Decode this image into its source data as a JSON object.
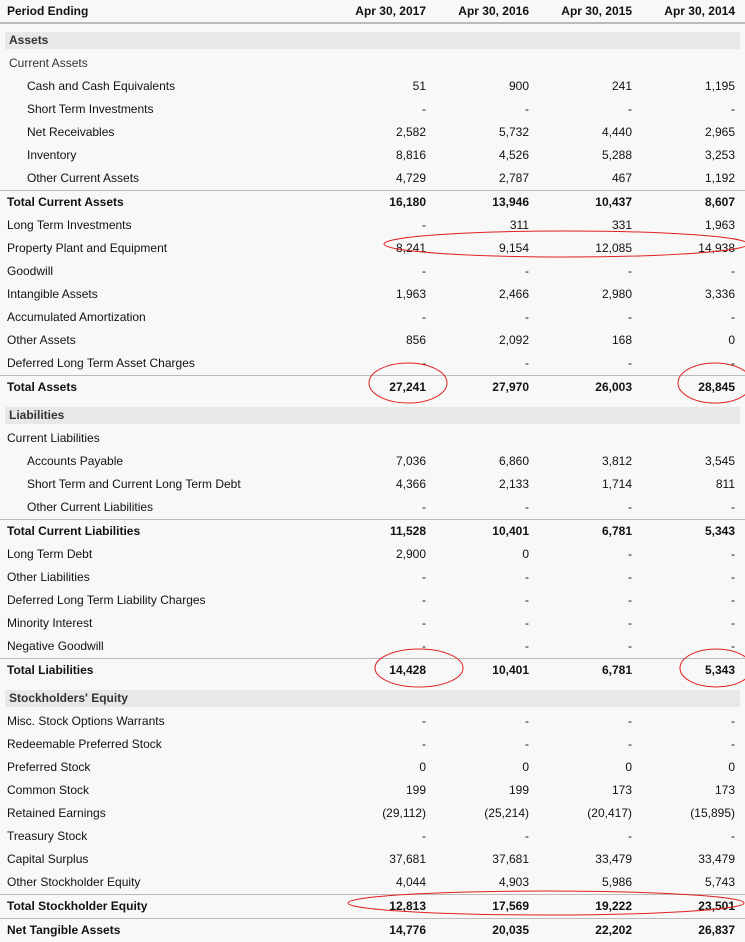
{
  "header": {
    "label": "Period Ending",
    "columns": [
      "Apr 30, 2017",
      "Apr 30, 2016",
      "Apr 30, 2015",
      "Apr 30, 2014"
    ]
  },
  "rows": [
    {
      "type": "section",
      "label": "Assets"
    },
    {
      "type": "sub",
      "label": "Current Assets"
    },
    {
      "type": "indent",
      "label": "Cash and Cash Equivalents",
      "values": [
        "51",
        "900",
        "241",
        "1,195"
      ]
    },
    {
      "type": "indent",
      "label": "Short Term Investments",
      "values": [
        "-",
        "-",
        "-",
        "-"
      ]
    },
    {
      "type": "indent",
      "label": "Net Receivables",
      "values": [
        "2,582",
        "5,732",
        "4,440",
        "2,965"
      ]
    },
    {
      "type": "indent",
      "label": "Inventory",
      "values": [
        "8,816",
        "4,526",
        "5,288",
        "3,253"
      ]
    },
    {
      "type": "indent",
      "label": "Other Current Assets",
      "values": [
        "4,729",
        "2,787",
        "467",
        "1,192"
      ]
    },
    {
      "type": "total",
      "label": "Total Current Assets",
      "values": [
        "16,180",
        "13,946",
        "10,437",
        "8,607"
      ]
    },
    {
      "type": "item",
      "label": "Long Term Investments",
      "values": [
        "-",
        "311",
        "331",
        "1,963"
      ]
    },
    {
      "type": "item",
      "label": "Property Plant and Equipment",
      "values": [
        "8,241",
        "9,154",
        "12,085",
        "14,938"
      ]
    },
    {
      "type": "item",
      "label": "Goodwill",
      "values": [
        "-",
        "-",
        "-",
        "-"
      ]
    },
    {
      "type": "item",
      "label": "Intangible Assets",
      "values": [
        "1,963",
        "2,466",
        "2,980",
        "3,336"
      ]
    },
    {
      "type": "item",
      "label": "Accumulated Amortization",
      "values": [
        "-",
        "-",
        "-",
        "-"
      ]
    },
    {
      "type": "item",
      "label": "Other Assets",
      "values": [
        "856",
        "2,092",
        "168",
        "0"
      ]
    },
    {
      "type": "item",
      "label": "Deferred Long Term Asset Charges",
      "values": [
        "-",
        "-",
        "-",
        "-"
      ]
    },
    {
      "type": "total",
      "label": "Total Assets",
      "values": [
        "27,241",
        "27,970",
        "26,003",
        "28,845"
      ]
    },
    {
      "type": "section",
      "label": "Liabilities"
    },
    {
      "type": "item",
      "label": "Current Liabilities"
    },
    {
      "type": "indent",
      "label": "Accounts Payable",
      "values": [
        "7,036",
        "6,860",
        "3,812",
        "3,545"
      ]
    },
    {
      "type": "indent",
      "label": "Short Term and Current Long Term Debt",
      "values": [
        "4,366",
        "2,133",
        "1,714",
        "811"
      ]
    },
    {
      "type": "indent",
      "label": "Other Current Liabilities",
      "values": [
        "-",
        "-",
        "-",
        "-"
      ]
    },
    {
      "type": "total",
      "label": "Total Current Liabilities",
      "values": [
        "11,528",
        "10,401",
        "6,781",
        "5,343"
      ]
    },
    {
      "type": "item",
      "label": "Long Term Debt",
      "values": [
        "2,900",
        "0",
        "-",
        "-"
      ]
    },
    {
      "type": "item",
      "label": "Other Liabilities",
      "values": [
        "-",
        "-",
        "-",
        "-"
      ]
    },
    {
      "type": "item",
      "label": "Deferred Long Term Liability Charges",
      "values": [
        "-",
        "-",
        "-",
        "-"
      ]
    },
    {
      "type": "item",
      "label": "Minority Interest",
      "values": [
        "-",
        "-",
        "-",
        "-"
      ]
    },
    {
      "type": "item",
      "label": "Negative Goodwill",
      "values": [
        "-",
        "-",
        "-",
        "-"
      ]
    },
    {
      "type": "total",
      "label": "Total Liabilities",
      "values": [
        "14,428",
        "10,401",
        "6,781",
        "5,343"
      ]
    },
    {
      "type": "section",
      "label": "Stockholders' Equity"
    },
    {
      "type": "item",
      "label": "Misc. Stock Options Warrants",
      "values": [
        "-",
        "-",
        "-",
        "-"
      ]
    },
    {
      "type": "item",
      "label": "Redeemable Preferred Stock",
      "values": [
        "-",
        "-",
        "-",
        "-"
      ]
    },
    {
      "type": "item",
      "label": "Preferred Stock",
      "values": [
        "0",
        "0",
        "0",
        "0"
      ]
    },
    {
      "type": "item",
      "label": "Common Stock",
      "values": [
        "199",
        "199",
        "173",
        "173"
      ]
    },
    {
      "type": "item",
      "label": "Retained Earnings",
      "values": [
        "(29,112)",
        "(25,214)",
        "(20,417)",
        "(15,895)"
      ]
    },
    {
      "type": "item",
      "label": "Treasury Stock",
      "values": [
        "-",
        "-",
        "-",
        "-"
      ]
    },
    {
      "type": "item",
      "label": "Capital Surplus",
      "values": [
        "37,681",
        "37,681",
        "33,479",
        "33,479"
      ]
    },
    {
      "type": "item",
      "label": "Other Stockholder Equity",
      "values": [
        "4,044",
        "4,903",
        "5,986",
        "5,743"
      ]
    },
    {
      "type": "total",
      "label": "Total Stockholder Equity",
      "values": [
        "12,813",
        "17,569",
        "19,222",
        "23,501"
      ]
    },
    {
      "type": "total",
      "label": "Net Tangible Assets",
      "values": [
        "14,776",
        "20,035",
        "22,202",
        "26,837"
      ]
    }
  ],
  "colors": {
    "annotation": "#e02020",
    "section_band": "#e8e8e8",
    "background": "#f8f8f8"
  }
}
